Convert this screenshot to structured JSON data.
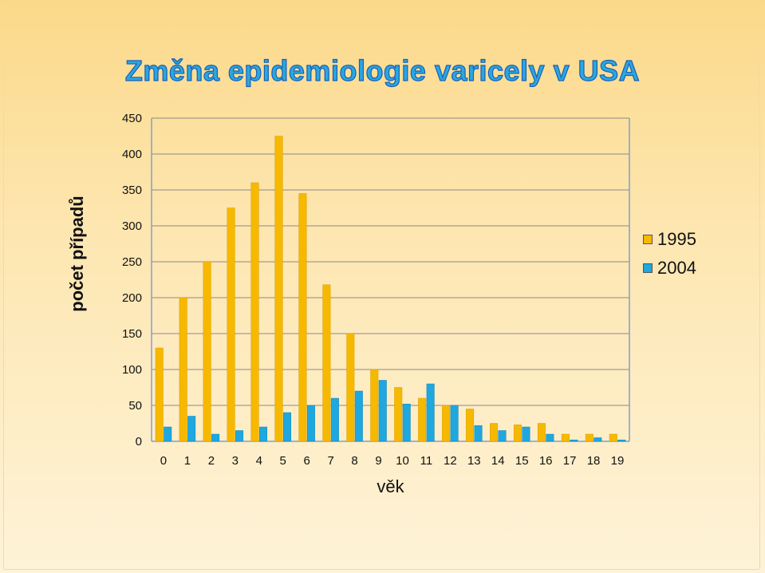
{
  "slide": {
    "title": "Změna epidemiologie varicely v USA"
  },
  "legend": {
    "items": [
      {
        "label": "1995",
        "color": "#f7b800"
      },
      {
        "label": "2004",
        "color": "#1fa7df"
      }
    ]
  },
  "chart_data": {
    "type": "bar",
    "title": "Změna epidemiologie varicely v USA",
    "xlabel": "věk",
    "ylabel": "počet případů",
    "categories": [
      "0",
      "1",
      "2",
      "3",
      "4",
      "5",
      "6",
      "7",
      "8",
      "9",
      "10",
      "11",
      "12",
      "13",
      "14",
      "15",
      "16",
      "17",
      "18",
      "19"
    ],
    "ylim": [
      0,
      450
    ],
    "yticks": [
      0,
      50,
      100,
      150,
      200,
      250,
      300,
      350,
      400,
      450
    ],
    "grid": true,
    "legend_position": "right",
    "series": [
      {
        "name": "1995",
        "color": "#f7b800",
        "values": [
          130,
          200,
          250,
          325,
          360,
          425,
          345,
          218,
          150,
          100,
          75,
          60,
          50,
          45,
          25,
          23,
          25,
          10,
          10,
          10
        ]
      },
      {
        "name": "2004",
        "color": "#1fa7df",
        "values": [
          20,
          35,
          10,
          15,
          20,
          40,
          50,
          60,
          70,
          85,
          52,
          80,
          50,
          22,
          15,
          20,
          10,
          2,
          5,
          2
        ]
      }
    ]
  }
}
